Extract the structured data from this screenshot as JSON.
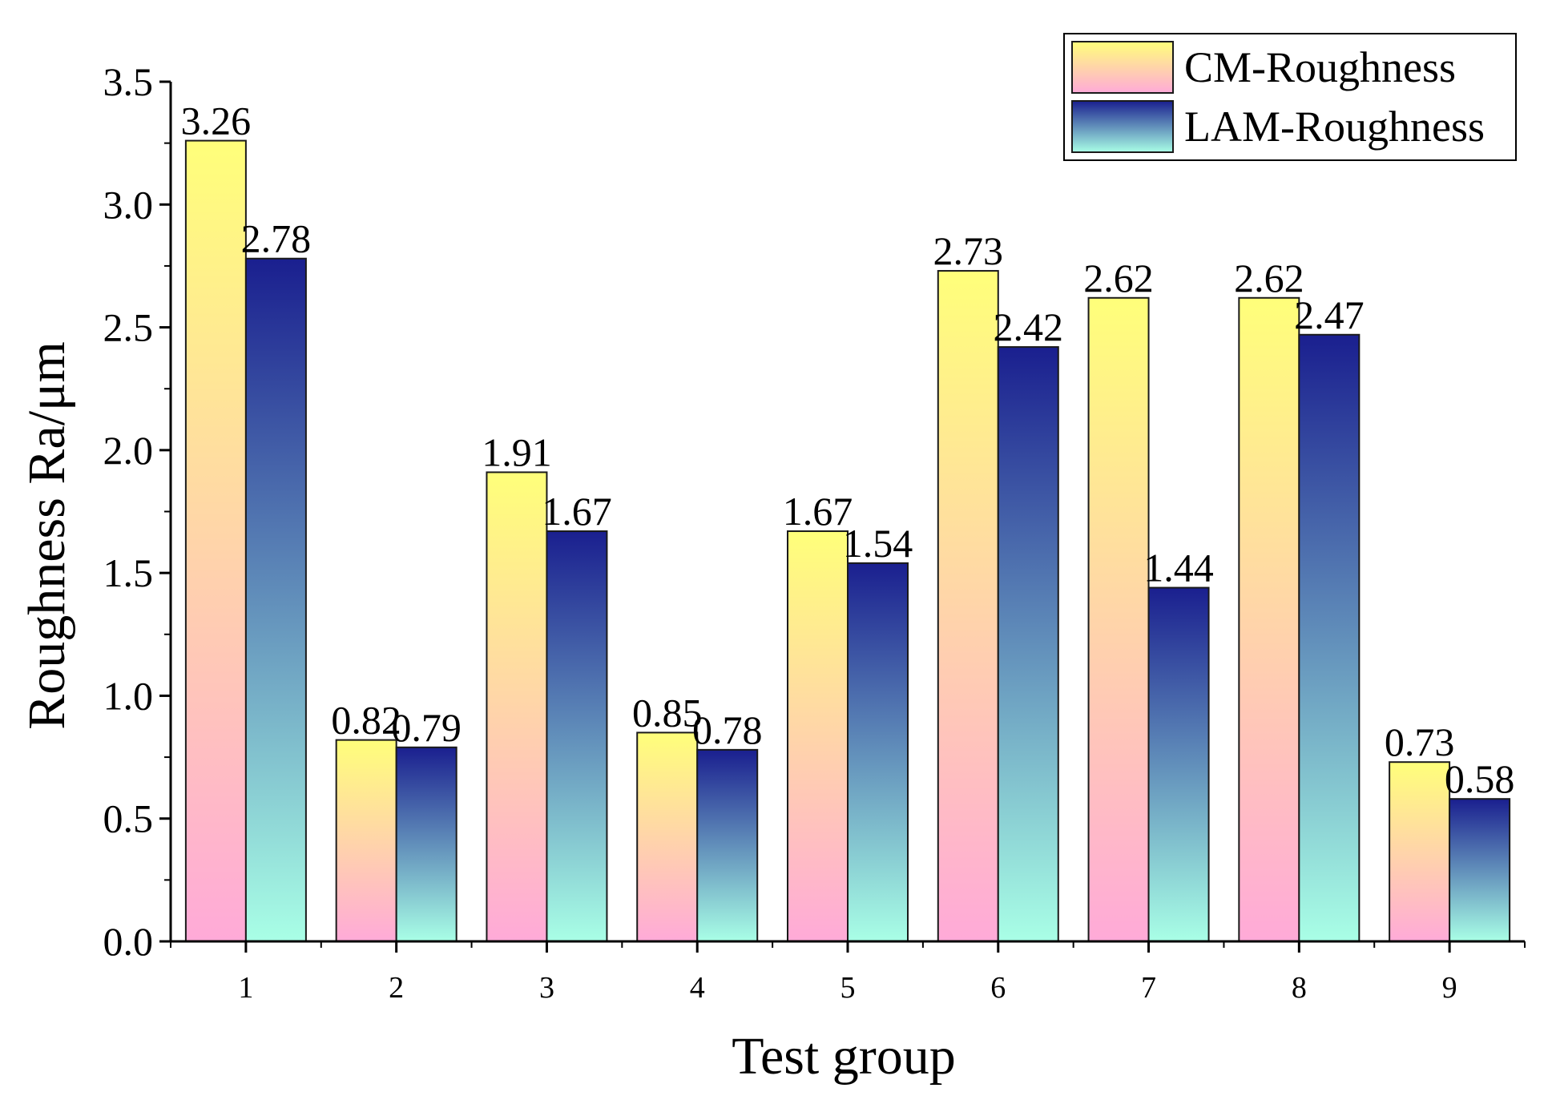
{
  "chart_data": {
    "type": "bar",
    "title": "",
    "xlabel": "Test group",
    "ylabel": "Roughness Ra/μm",
    "categories": [
      "1",
      "2",
      "3",
      "4",
      "5",
      "6",
      "7",
      "8",
      "9"
    ],
    "series": [
      {
        "name": "CM-Roughness",
        "values": [
          3.26,
          0.82,
          1.91,
          0.85,
          1.67,
          2.73,
          2.62,
          2.62,
          0.73
        ],
        "labels": [
          "3.26",
          "0.82",
          "1.91",
          "0.85",
          "1.67",
          "2.73",
          "2.62",
          "2.62",
          "0.73"
        ],
        "gradient": {
          "top": "#ffff7a",
          "bottom": "#ffaad8"
        }
      },
      {
        "name": "LAM-Roughness",
        "values": [
          2.78,
          0.79,
          1.67,
          0.78,
          1.54,
          2.42,
          1.44,
          2.47,
          0.58
        ],
        "labels": [
          "2.78",
          "0.79",
          "1.67",
          "0.78",
          "1.54",
          "2.42",
          "1.44",
          "2.47",
          "0.58"
        ],
        "gradient": {
          "top": "#1a1f8f",
          "bottom": "#a9ffe6"
        }
      }
    ],
    "ylim": [
      0,
      3.5
    ],
    "yticks": [
      "0.0",
      "0.5",
      "1.0",
      "1.5",
      "2.0",
      "2.5",
      "3.0",
      "3.5"
    ],
    "grid": false,
    "legend_position": "top-right",
    "colors": {
      "axis": "#000000",
      "bar_outline": "#1a1a1a",
      "background": "#ffffff"
    }
  }
}
